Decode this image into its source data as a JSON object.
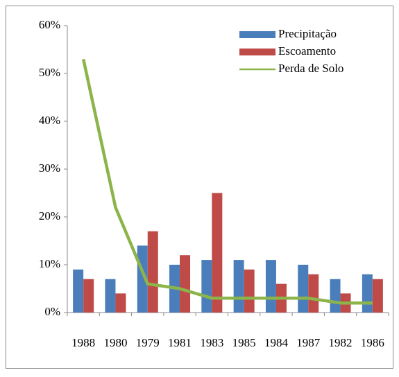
{
  "chart_data": {
    "type": "bar",
    "categories": [
      "1988",
      "1980",
      "1979",
      "1981",
      "1983",
      "1985",
      "1984",
      "1987",
      "1982",
      "1986"
    ],
    "series": [
      {
        "name": "Precipitação",
        "type": "bar",
        "color": "#4a7ebb",
        "values": [
          9,
          7,
          14,
          10,
          11,
          11,
          11,
          10,
          7,
          8
        ]
      },
      {
        "name": "Escoamento",
        "type": "bar",
        "color": "#be4b48",
        "values": [
          7,
          4,
          17,
          12,
          25,
          9,
          6,
          8,
          4,
          7
        ]
      },
      {
        "name": "Perda de Solo",
        "type": "line",
        "color": "#8cb44a",
        "values": [
          53,
          22,
          6,
          5,
          3,
          3,
          3,
          3,
          2,
          2
        ]
      }
    ],
    "ylim": [
      0,
      60
    ],
    "yticks": [
      {
        "value": 0,
        "label": "0%"
      },
      {
        "value": 10,
        "label": "10%"
      },
      {
        "value": 20,
        "label": "20%"
      },
      {
        "value": 30,
        "label": "30%"
      },
      {
        "value": 40,
        "label": "40%"
      },
      {
        "value": 50,
        "label": "50%"
      },
      {
        "value": 60,
        "label": "60%"
      }
    ],
    "legend": "upper right"
  }
}
